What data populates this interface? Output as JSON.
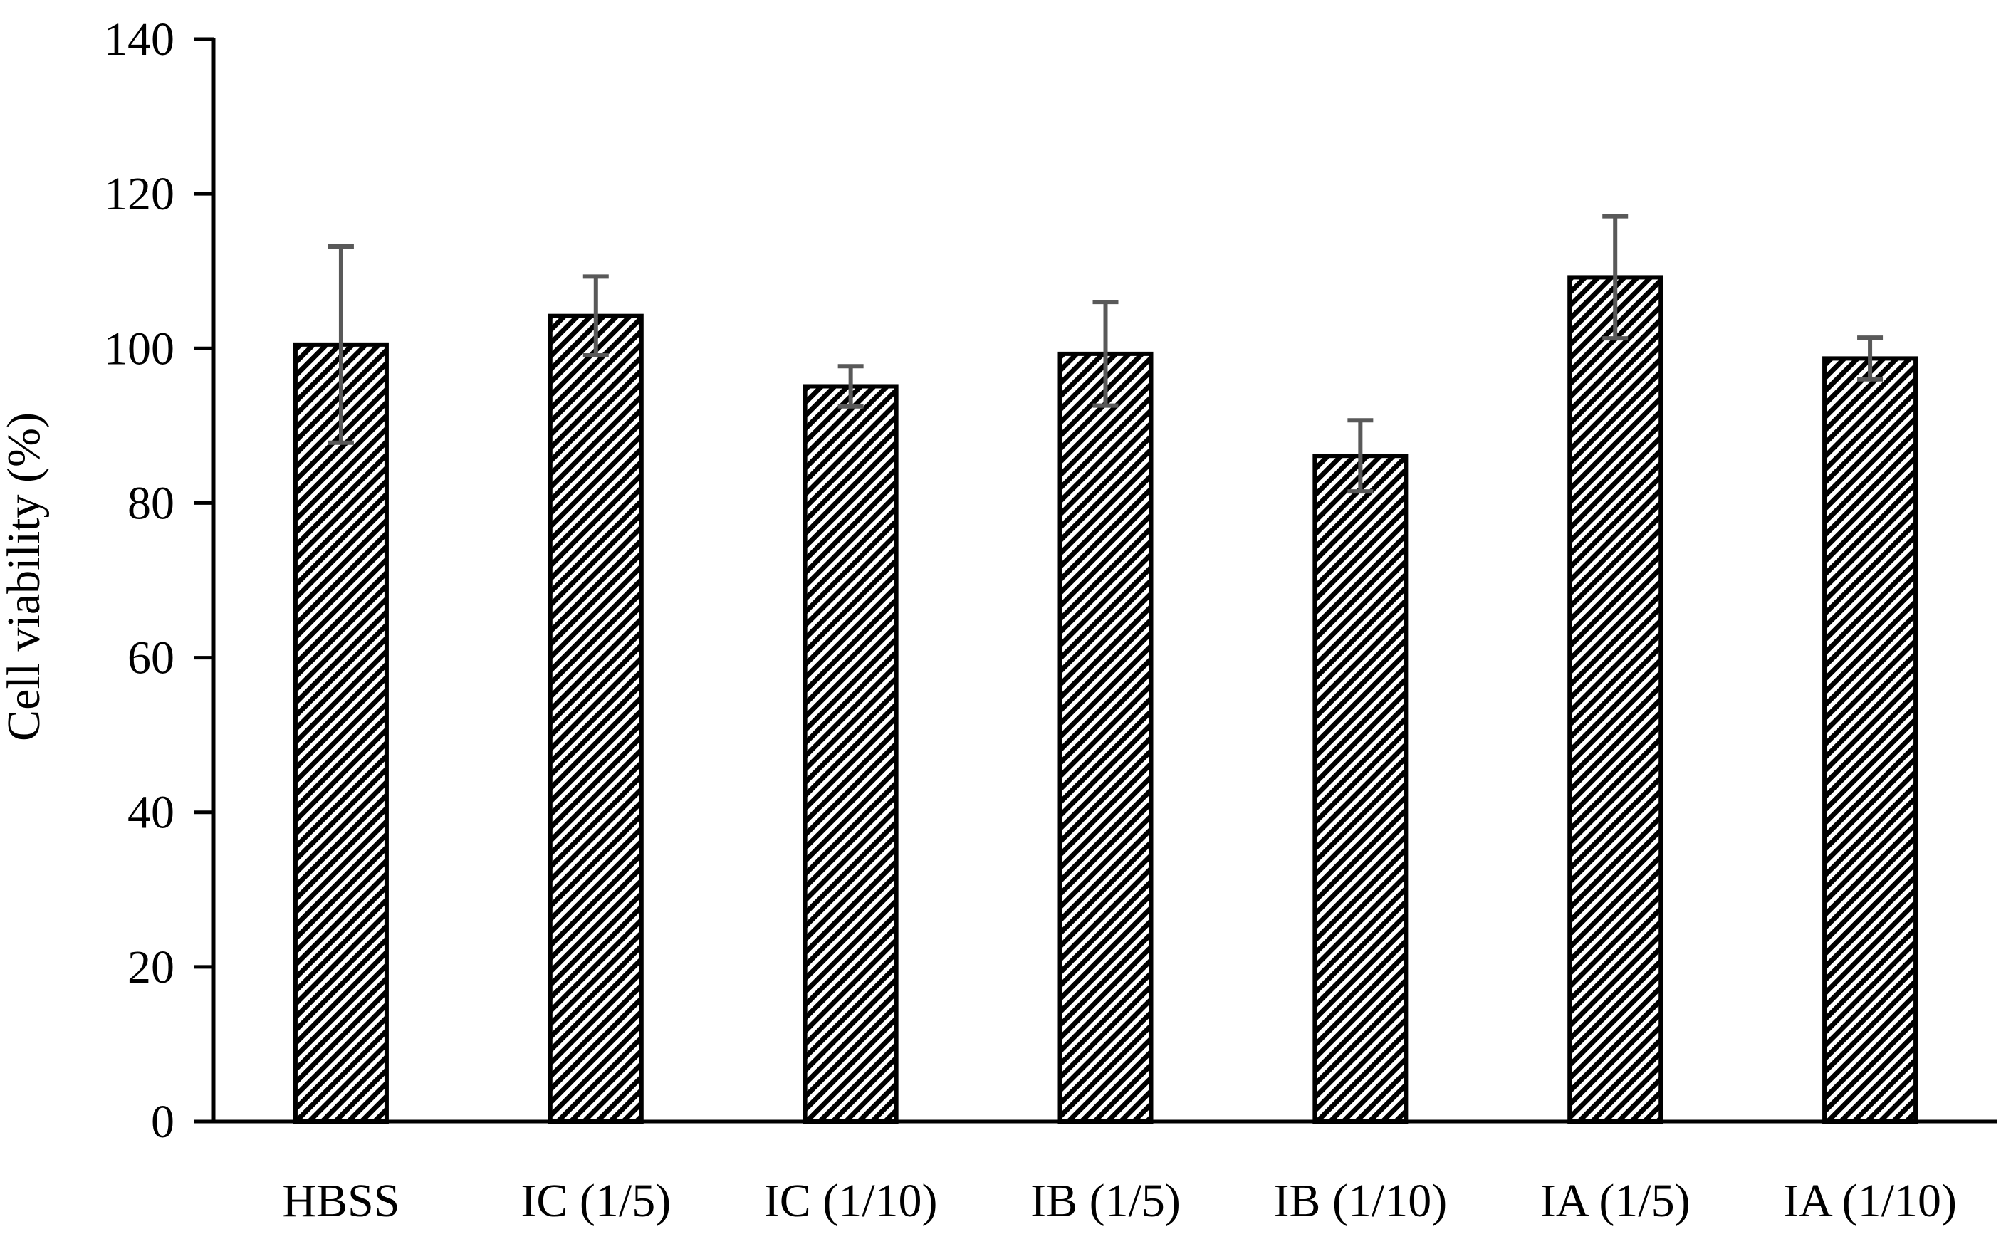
{
  "chart_data": {
    "type": "bar",
    "title": "",
    "xlabel": "",
    "ylabel": "Cell viability (%)",
    "ylim": [
      0,
      140
    ],
    "yticks": [
      0,
      20,
      40,
      60,
      80,
      100,
      120,
      140
    ],
    "ytick_labels": [
      "0",
      "20",
      "40",
      "60",
      "80",
      "100",
      "120",
      "140"
    ],
    "categories": [
      "HBSS",
      "IC (1/5)",
      "IC (1/10)",
      "IB (1/5)",
      "IB (1/10)",
      "IA (1/5)",
      "IA (1/10)"
    ],
    "values": [
      100.5,
      104.2,
      95.1,
      99.3,
      86.1,
      109.2,
      98.7
    ],
    "errors": [
      12.7,
      5.1,
      2.6,
      6.7,
      4.6,
      7.9,
      2.7
    ],
    "grid": false,
    "legend": "none",
    "fill_pattern": "diagonal-hatch",
    "colors": {
      "bar_stroke": "#000000",
      "hatch": "#000000",
      "bar_background": "#ffffff",
      "error_bar": "#595959",
      "axis": "#000000"
    }
  }
}
